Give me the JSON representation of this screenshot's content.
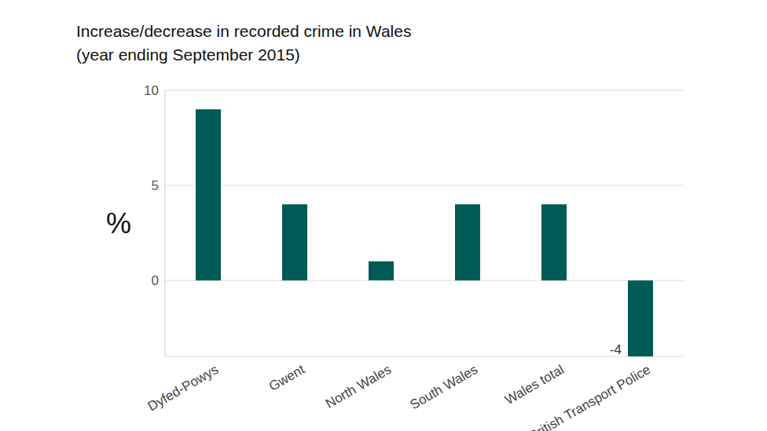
{
  "chart_data": {
    "type": "bar",
    "title": "Increase/decrease in recorded crime in Wales",
    "subtitle": "(year ending September 2015)",
    "y_label": "%",
    "categories": [
      "Dyfed-Powys",
      "Gwent",
      "North Wales",
      "South Wales",
      "Wales total",
      "British Transport Police"
    ],
    "values": [
      9,
      4,
      1,
      4,
      4,
      -4
    ],
    "data_labels": true,
    "value_labels": [
      null,
      null,
      null,
      null,
      null,
      "-4"
    ],
    "color": "#005a55",
    "ylim": [
      -4,
      10
    ],
    "yticks": [
      0,
      5,
      10
    ],
    "grid": true
  }
}
